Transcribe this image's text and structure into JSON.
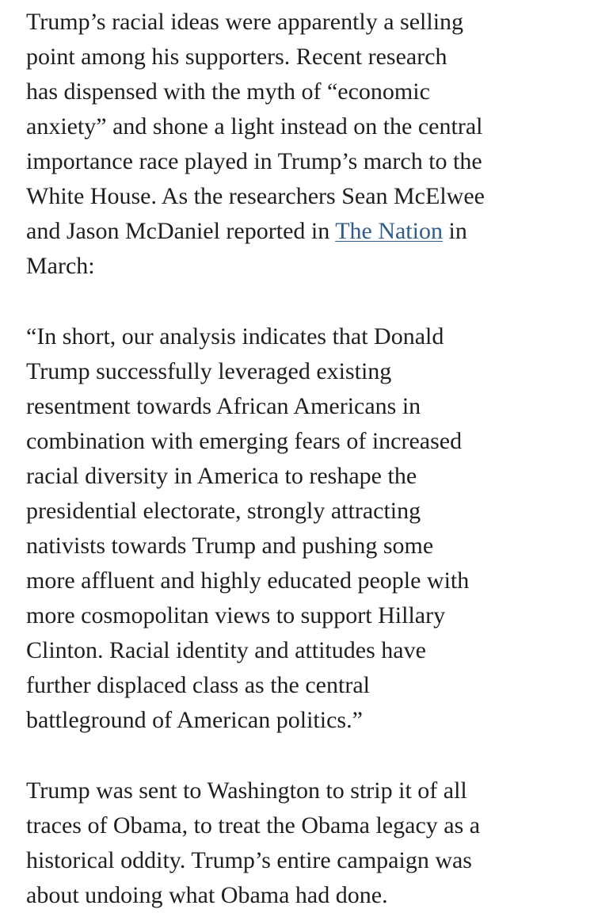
{
  "article": {
    "para1": {
      "l1": "Trump’s racial ideas were apparently a selling",
      "l2": "point among his supporters. Recent research",
      "l3": "has dispensed with the myth of “economic",
      "l4": "anxiety” and shone a light instead on the central",
      "l5": "importance race played in Trump’s march to the",
      "l6": "White House. As the researchers Sean McElwee",
      "l7_before": "and Jason McDaniel reported in ",
      "l7_link": "The Nation",
      "l7_after": " in",
      "l8": "March:"
    },
    "quote": {
      "l1": "“In short, our analysis indicates that Donald",
      "l2": "Trump successfully leveraged existing",
      "l3": "resentment towards African Americans in",
      "l4": "combination with emerging fears of increased",
      "l5": "racial diversity in America to reshape the",
      "l6": "presidential electorate, strongly attracting",
      "l7": "nativists towards Trump and pushing some",
      "l8": "more affluent and highly educated people with",
      "l9": "more cosmopolitan views to support Hillary",
      "l10": "Clinton. Racial identity and attitudes have",
      "l11": "further displaced class as the central",
      "l12": "battleground of American politics.”"
    },
    "para2": {
      "l1": "Trump was sent to Washington to strip it of all",
      "l2": "traces of Obama, to treat the Obama legacy as a",
      "l3": "historical oddity. Trump’s entire campaign was",
      "l4": "about undoing what Obama had done."
    }
  },
  "colors": {
    "text": "#1f1f1f",
    "link": "#2f5d87",
    "background": "#ffffff"
  }
}
